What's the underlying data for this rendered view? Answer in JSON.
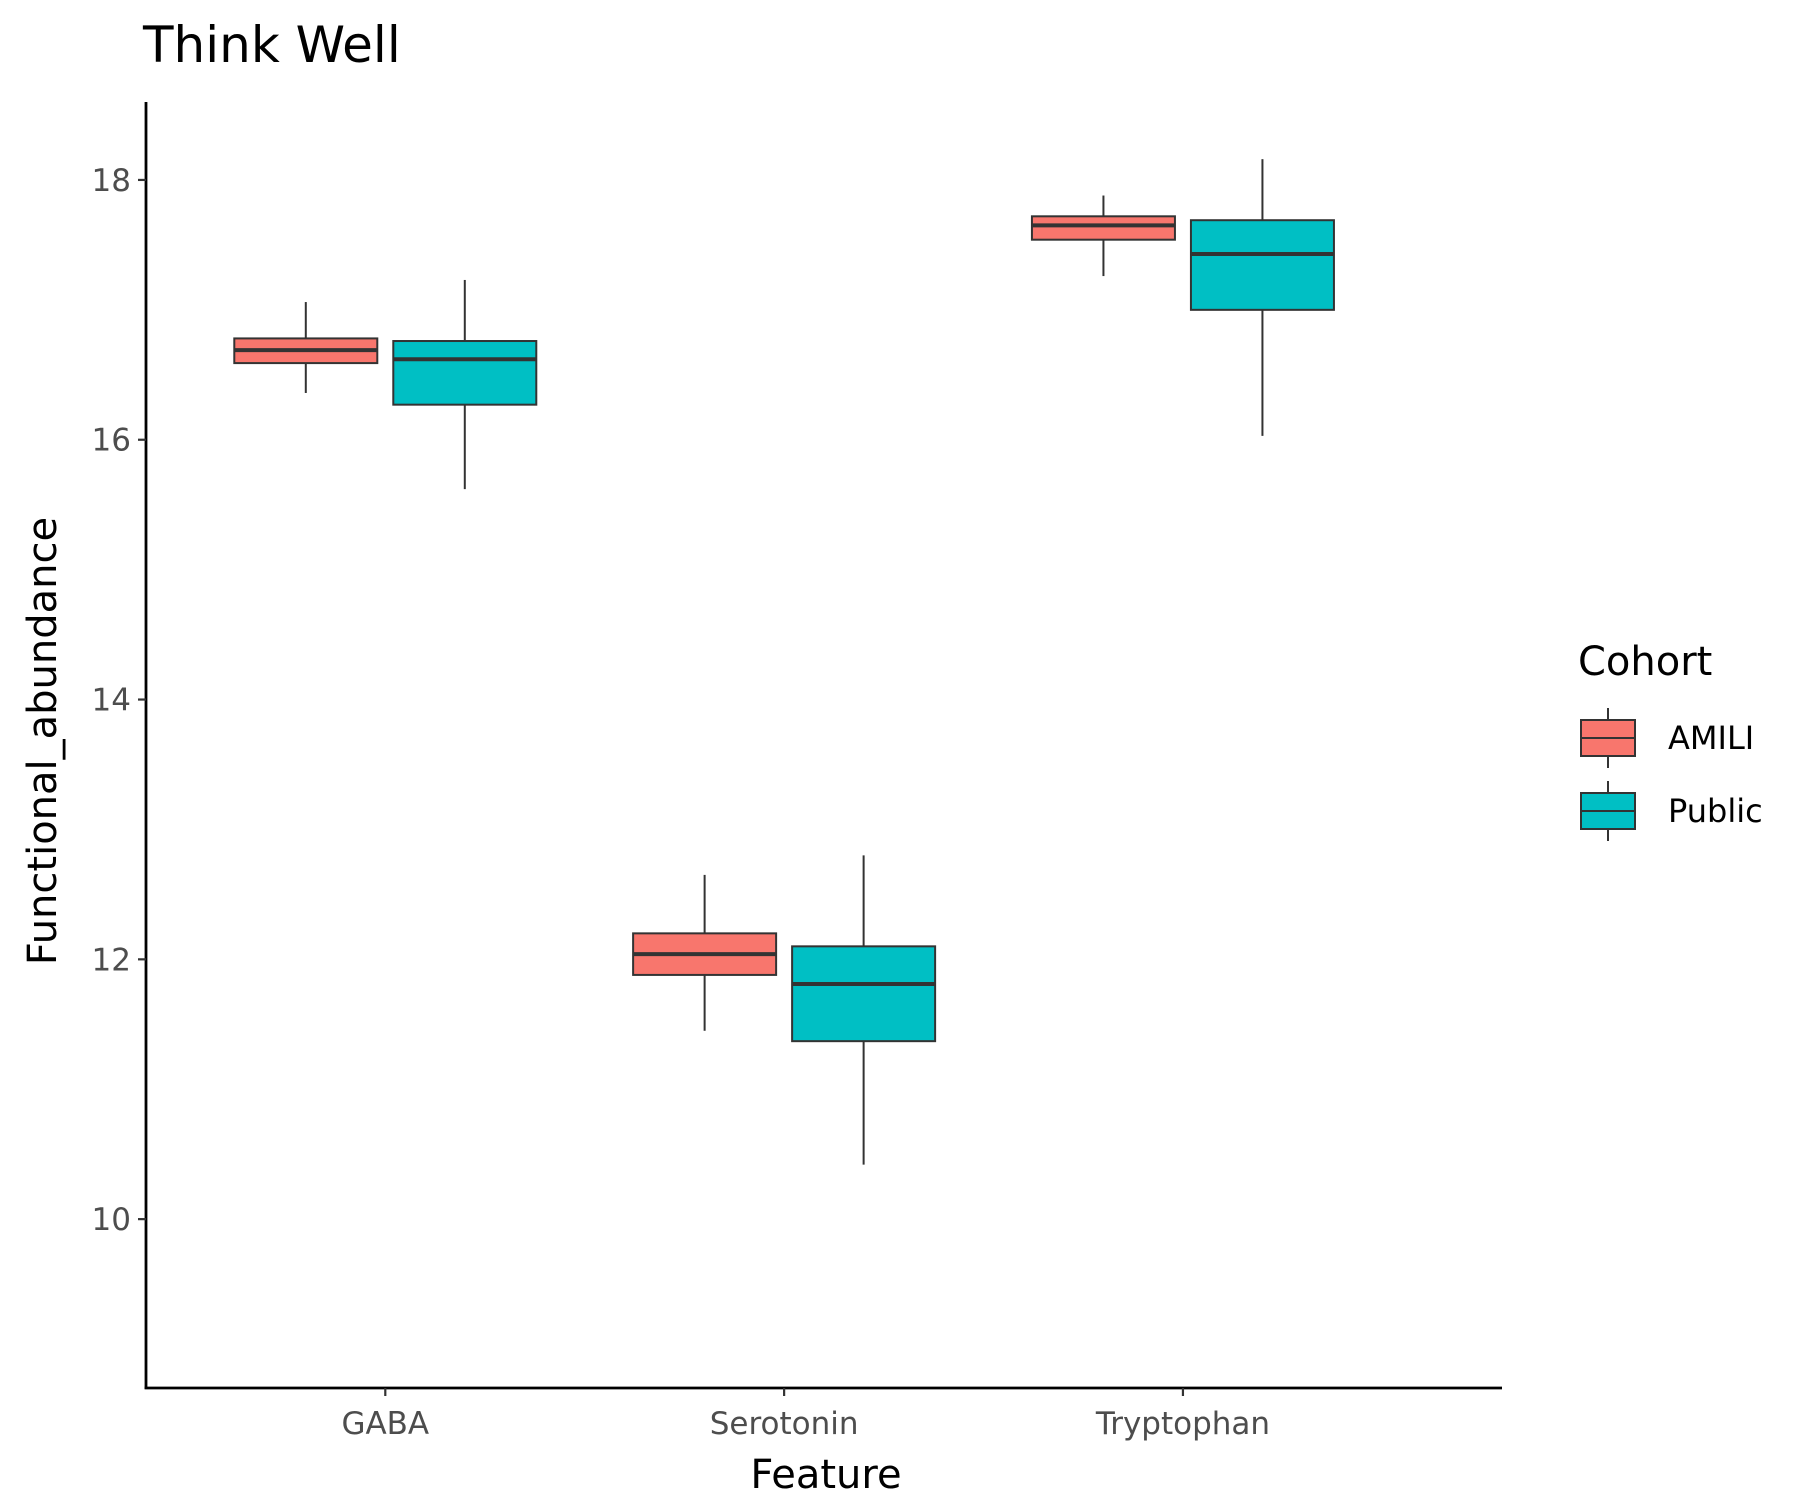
{
  "chart_data": {
    "type": "box",
    "title": "Think Well",
    "xlabel": "Feature",
    "ylabel": "Functional_abundance",
    "categories": [
      "GABA",
      "Serotonin",
      "Tryptophan"
    ],
    "ylim": [
      8.7,
      18.6
    ],
    "yticks": [
      10,
      12,
      14,
      16,
      18
    ],
    "grid": false,
    "legend": {
      "title": "Cohort",
      "position": "right"
    },
    "series": [
      {
        "name": "AMILI",
        "color": "#F8766D",
        "boxes": [
          {
            "min": 16.36,
            "q1": 16.59,
            "median": 16.69,
            "q3": 16.78,
            "max": 17.06
          },
          {
            "min": 11.45,
            "q1": 11.88,
            "median": 12.04,
            "q3": 12.2,
            "max": 12.65
          },
          {
            "min": 17.26,
            "q1": 17.54,
            "median": 17.65,
            "q3": 17.72,
            "max": 17.88
          }
        ]
      },
      {
        "name": "Public",
        "color": "#00BFC4",
        "boxes": [
          {
            "min": 15.62,
            "q1": 16.27,
            "median": 16.62,
            "q3": 16.76,
            "max": 17.23
          },
          {
            "min": 10.42,
            "q1": 11.37,
            "median": 11.81,
            "q3": 12.1,
            "max": 12.8
          },
          {
            "min": 16.03,
            "q1": 17.0,
            "median": 17.43,
            "q3": 17.69,
            "max": 18.16
          }
        ]
      }
    ]
  }
}
